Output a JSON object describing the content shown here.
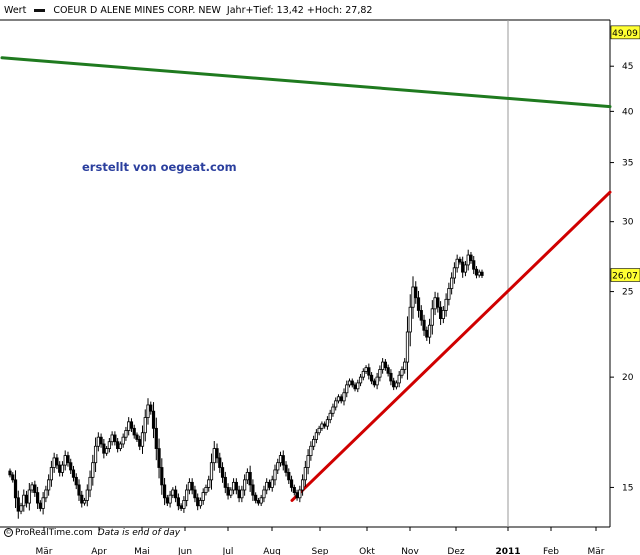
{
  "header": {
    "series_label": "Wert",
    "instrument": "COEUR D ALENE MINES CORP. NEW",
    "range_text": "Jahr+Tief: 13,42 +Hoch: 27,82"
  },
  "watermark": "erstellt von oegeat.com",
  "footer": {
    "brand": "ProRealTime.com",
    "note": "Data is end of day"
  },
  "chart_data": {
    "type": "candlestick",
    "title": "COEUR D ALENE MINES CORP. NEW",
    "y_scale": "log",
    "ylim": [
      13.6,
      50.5
    ],
    "y_ticks": [
      15,
      20,
      25,
      30,
      35,
      40,
      45
    ],
    "x_ticks": [
      "Mär",
      "Apr",
      "Mai",
      "Jun",
      "Jul",
      "Aug",
      "Sep",
      "Okt",
      "Nov",
      "Dez",
      "2011",
      "Feb",
      "Mär"
    ],
    "grid": false,
    "year_separator_before": "2011",
    "price_labels": [
      {
        "value": "49,09",
        "y": 49.09,
        "highlight": "yellow"
      },
      {
        "value": "26,07",
        "y": 26.07,
        "highlight": "yellow"
      }
    ],
    "closes": [
      15.5,
      15.3,
      14.6,
      14.1,
      14.3,
      14.7,
      14.4,
      14.9,
      15.1,
      14.8,
      14.4,
      14.2,
      14.6,
      14.9,
      15.3,
      15.8,
      16.2,
      15.9,
      15.6,
      15.9,
      16.3,
      16.0,
      15.7,
      15.4,
      15.1,
      14.7,
      14.4,
      14.5,
      14.9,
      15.4,
      16.0,
      16.7,
      17.1,
      16.8,
      16.4,
      16.6,
      16.9,
      17.2,
      16.9,
      16.6,
      16.8,
      17.1,
      17.4,
      17.8,
      17.5,
      17.2,
      17.0,
      16.7,
      17.3,
      18.0,
      18.6,
      18.3,
      17.5,
      16.6,
      15.8,
      15.1,
      14.6,
      14.4,
      14.7,
      14.9,
      14.6,
      14.3,
      14.2,
      14.5,
      14.9,
      15.2,
      14.9,
      14.6,
      14.3,
      14.5,
      14.8,
      15.0,
      15.3,
      16.0,
      16.6,
      16.2,
      15.8,
      15.4,
      15.0,
      14.7,
      14.9,
      15.2,
      14.9,
      14.6,
      14.9,
      15.3,
      15.6,
      15.1,
      14.7,
      14.5,
      14.4,
      14.6,
      14.9,
      15.2,
      15.0,
      15.3,
      15.7,
      16.0,
      16.3,
      15.9,
      15.6,
      15.3,
      15.0,
      14.8,
      14.6,
      14.9,
      15.3,
      15.8,
      16.3,
      16.7,
      17.0,
      17.3,
      17.5,
      17.7,
      17.6,
      17.9,
      18.2,
      18.5,
      18.8,
      19.0,
      18.8,
      19.2,
      19.6,
      19.8,
      19.6,
      19.4,
      19.7,
      20.0,
      20.3,
      20.5,
      20.1,
      19.8,
      19.6,
      20.0,
      20.4,
      20.8,
      20.5,
      20.2,
      19.8,
      19.5,
      19.7,
      20.1,
      20.4,
      20.8,
      22.5,
      24.0,
      25.3,
      24.6,
      23.8,
      23.2,
      22.6,
      22.2,
      22.9,
      23.9,
      24.6,
      24.0,
      23.3,
      23.8,
      24.5,
      25.2,
      25.9,
      26.6,
      27.2,
      27.0,
      26.3,
      26.8,
      27.5,
      27.1,
      26.5,
      26.1,
      26.3,
      26.07
    ],
    "overlays": [
      {
        "name": "",
        "color": "#d00000",
        "from": {
          "x": "Aug",
          "y": 14.5
        },
        "to": {
          "x": "Mär",
          "y": 32.4
        }
      },
      {
        "name": "",
        "color": "#1f7a1f",
        "from": {
          "x": "start",
          "y": 46.0
        },
        "to": {
          "x": "Mär",
          "y": 40.5
        }
      }
    ]
  }
}
